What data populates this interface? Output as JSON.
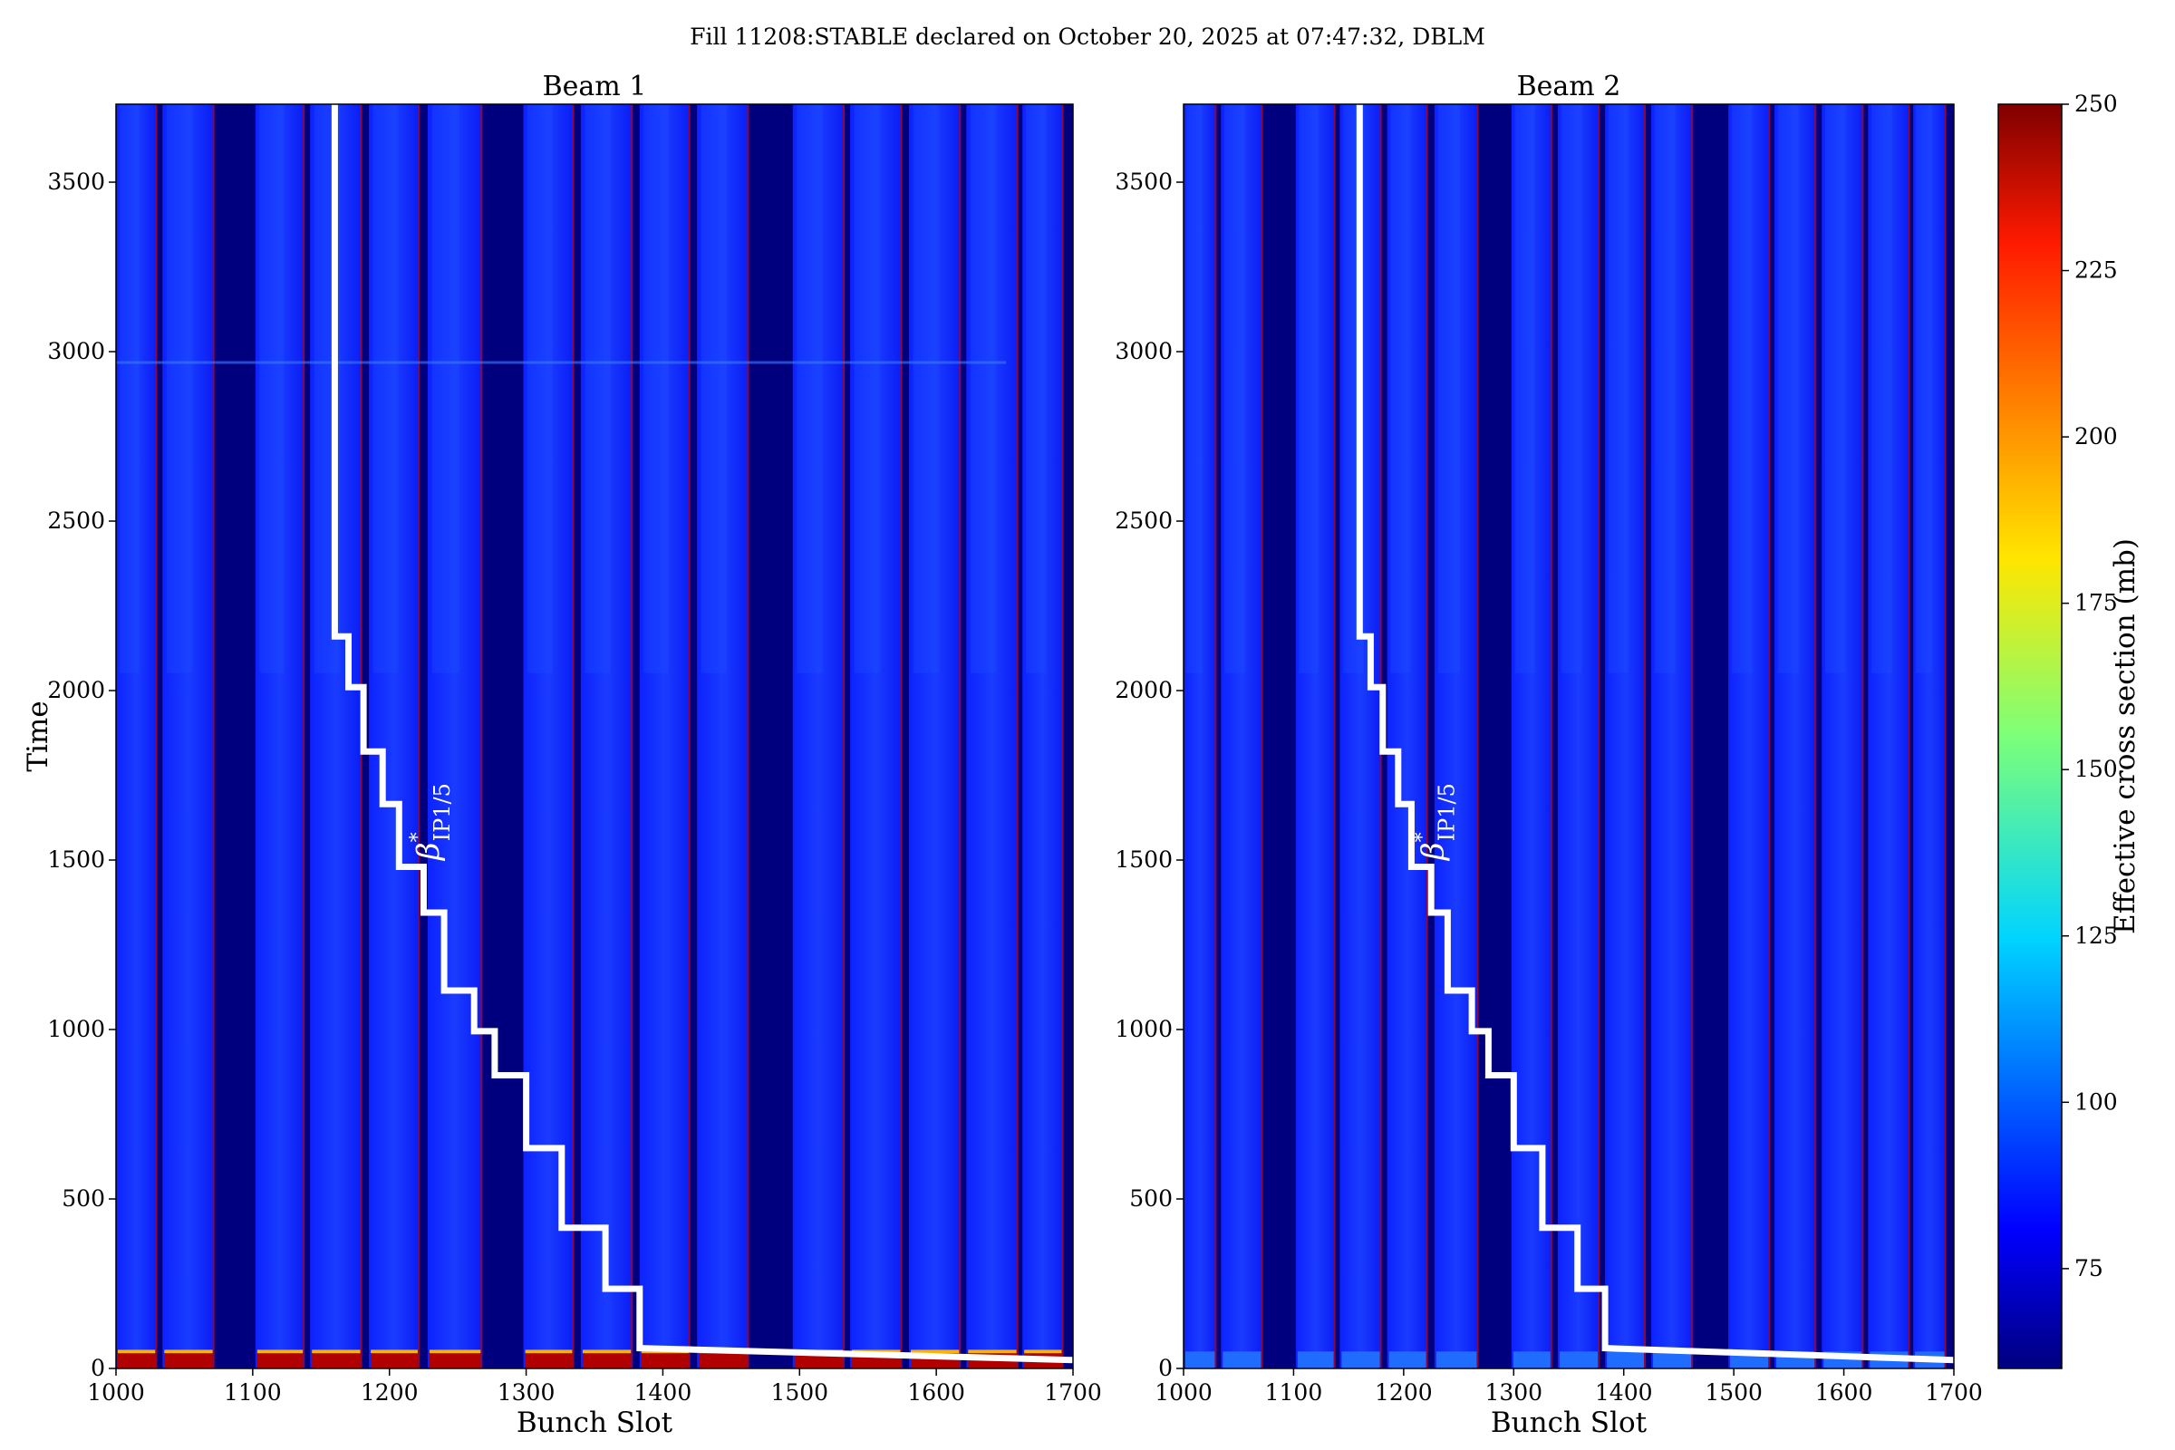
{
  "figure": {
    "suptitle": "Fill 11208:STABLE declared on October 20, 2025 at 07:47:32, DBLM"
  },
  "colors": {
    "empty_slot": "#00007f",
    "filled_train": "#0a1eff",
    "train_head": "#1e4cff",
    "edge_hot": "#b80000",
    "overlay_line": "#ffffff"
  },
  "chart_data": [
    {
      "type": "heatmap",
      "title": "Beam 1",
      "xlabel": "Bunch Slot",
      "ylabel": "Time",
      "xlim": [
        1000,
        1700
      ],
      "ylim": [
        0,
        3730
      ],
      "xticks": [
        1000,
        1100,
        1200,
        1300,
        1400,
        1500,
        1600,
        1700
      ],
      "yticks": [
        0,
        500,
        1000,
        1500,
        2000,
        2500,
        3000,
        3500
      ],
      "trains": [
        [
          1000,
          1030
        ],
        [
          1034,
          1072
        ],
        [
          1102,
          1138
        ],
        [
          1142,
          1180
        ],
        [
          1185,
          1222
        ],
        [
          1228,
          1268
        ],
        [
          1298,
          1335
        ],
        [
          1340,
          1378
        ],
        [
          1383,
          1420
        ],
        [
          1425,
          1463
        ],
        [
          1495,
          1533
        ],
        [
          1537,
          1575
        ],
        [
          1580,
          1618
        ],
        [
          1622,
          1660
        ],
        [
          1663,
          1693
        ]
      ],
      "overlay": {
        "label_symbol": "β",
        "label_sup": "*",
        "label_sub": "IP1/5",
        "label_position": [
          1236,
          1500
        ],
        "points": [
          [
            1160,
            3730
          ],
          [
            1160,
            2160
          ],
          [
            1170,
            2160
          ],
          [
            1170,
            2010
          ],
          [
            1181,
            2010
          ],
          [
            1181,
            1820
          ],
          [
            1195,
            1820
          ],
          [
            1195,
            1665
          ],
          [
            1207,
            1665
          ],
          [
            1207,
            1480
          ],
          [
            1225,
            1480
          ],
          [
            1225,
            1345
          ],
          [
            1240,
            1345
          ],
          [
            1240,
            1115
          ],
          [
            1262,
            1115
          ],
          [
            1262,
            995
          ],
          [
            1277,
            995
          ],
          [
            1277,
            865
          ],
          [
            1300,
            865
          ],
          [
            1300,
            650
          ],
          [
            1326,
            650
          ],
          [
            1326,
            415
          ],
          [
            1358,
            415
          ],
          [
            1358,
            235
          ],
          [
            1383,
            235
          ],
          [
            1383,
            60
          ],
          [
            1700,
            25
          ]
        ]
      }
    },
    {
      "type": "heatmap",
      "title": "Beam 2",
      "xlabel": "Bunch Slot",
      "ylabel": "",
      "xlim": [
        1000,
        1700
      ],
      "ylim": [
        0,
        3730
      ],
      "xticks": [
        1000,
        1100,
        1200,
        1300,
        1400,
        1500,
        1600,
        1700
      ],
      "yticks": [
        0,
        500,
        1000,
        1500,
        2000,
        2500,
        3000,
        3500
      ],
      "trains": [
        [
          1000,
          1030
        ],
        [
          1034,
          1072
        ],
        [
          1102,
          1138
        ],
        [
          1142,
          1180
        ],
        [
          1185,
          1222
        ],
        [
          1228,
          1268
        ],
        [
          1298,
          1335
        ],
        [
          1340,
          1378
        ],
        [
          1383,
          1420
        ],
        [
          1425,
          1463
        ],
        [
          1495,
          1533
        ],
        [
          1537,
          1575
        ],
        [
          1580,
          1618
        ],
        [
          1622,
          1660
        ],
        [
          1663,
          1693
        ]
      ],
      "overlay": {
        "label_symbol": "β",
        "label_sup": "*",
        "label_sub": "IP1/5",
        "label_position": [
          1236,
          1500
        ],
        "points": [
          [
            1160,
            3730
          ],
          [
            1160,
            2160
          ],
          [
            1170,
            2160
          ],
          [
            1170,
            2010
          ],
          [
            1181,
            2010
          ],
          [
            1181,
            1820
          ],
          [
            1195,
            1820
          ],
          [
            1195,
            1665
          ],
          [
            1207,
            1665
          ],
          [
            1207,
            1480
          ],
          [
            1225,
            1480
          ],
          [
            1225,
            1345
          ],
          [
            1240,
            1345
          ],
          [
            1240,
            1115
          ],
          [
            1262,
            1115
          ],
          [
            1262,
            995
          ],
          [
            1277,
            995
          ],
          [
            1277,
            865
          ],
          [
            1300,
            865
          ],
          [
            1300,
            650
          ],
          [
            1326,
            650
          ],
          [
            1326,
            415
          ],
          [
            1358,
            415
          ],
          [
            1358,
            235
          ],
          [
            1383,
            235
          ],
          [
            1383,
            60
          ],
          [
            1700,
            25
          ]
        ]
      }
    }
  ],
  "colorbar": {
    "label": "Effective cross section (mb)",
    "min": 60,
    "max": 250,
    "ticks": [
      75,
      100,
      125,
      150,
      175,
      200,
      225,
      250
    ],
    "colormap": "jet"
  }
}
